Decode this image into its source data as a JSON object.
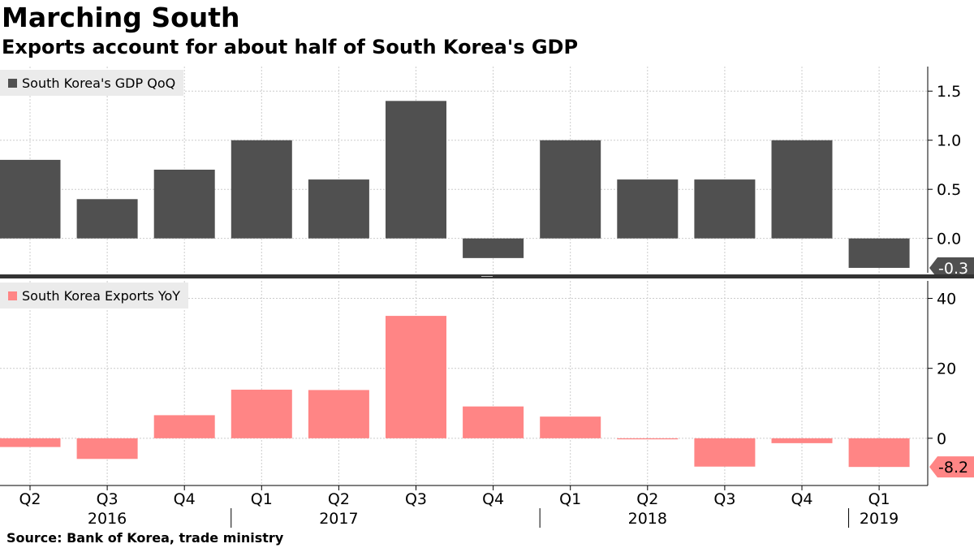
{
  "header": {
    "title": "Marching South",
    "subtitle": "Exports account for about half of South Korea's GDP"
  },
  "footer": {
    "source": "Source:  Bank of Korea, trade ministry"
  },
  "colors": {
    "gdp": "#505050",
    "exports": "#ff8585",
    "grid": "#cccccc"
  },
  "chart_data": [
    {
      "type": "bar",
      "name": "South Korea's GDP QoQ",
      "legend": "South Korea's GDP QoQ",
      "categories": [
        "Q2 2016",
        "Q3 2016",
        "Q4 2016",
        "Q1 2017",
        "Q2 2017",
        "Q3 2017",
        "Q4 2017",
        "Q1 2018",
        "Q2 2018",
        "Q3 2018",
        "Q4 2018",
        "Q1 2019"
      ],
      "values": [
        0.8,
        0.4,
        0.7,
        1.0,
        0.6,
        1.4,
        -0.2,
        1.0,
        0.6,
        0.6,
        1.0,
        -0.3
      ],
      "yticks": [
        "1.5",
        "1.0",
        "0.5",
        "0.0"
      ],
      "ytick_values": [
        1.5,
        1.0,
        0.5,
        0.0
      ],
      "ylim": [
        -0.35,
        1.75
      ],
      "last_value_label": "-0.3",
      "grid": true
    },
    {
      "type": "bar",
      "name": "South Korea Exports YoY",
      "legend": "South Korea Exports YoY",
      "categories": [
        "Q2 2016",
        "Q3 2016",
        "Q4 2016",
        "Q1 2017",
        "Q2 2017",
        "Q3 2017",
        "Q4 2017",
        "Q1 2018",
        "Q2 2018",
        "Q3 2018",
        "Q4 2018",
        "Q1 2019"
      ],
      "values": [
        -2.5,
        -5.9,
        6.6,
        13.9,
        13.8,
        35.0,
        9.1,
        6.2,
        -0.3,
        -8.1,
        -1.4,
        -8.2
      ],
      "yticks": [
        "40",
        "20",
        "0"
      ],
      "ytick_values": [
        40,
        20,
        0
      ],
      "ylim": [
        -13.5,
        45
      ],
      "last_value_label": "-8.2",
      "grid": true
    }
  ],
  "x_axis": {
    "quarter_labels": [
      "Q2",
      "Q3",
      "Q4",
      "Q1",
      "Q2",
      "Q3",
      "Q4",
      "Q1",
      "Q2",
      "Q3",
      "Q4",
      "Q1"
    ],
    "year_labels": [
      {
        "label": "2016",
        "center_index": 1
      },
      {
        "label": "2017",
        "center_index": 4
      },
      {
        "label": "2018",
        "center_index": 8
      },
      {
        "label": "2019",
        "center_index": 11
      }
    ],
    "year_dividers_after_index": [
      2,
      6,
      10
    ]
  }
}
